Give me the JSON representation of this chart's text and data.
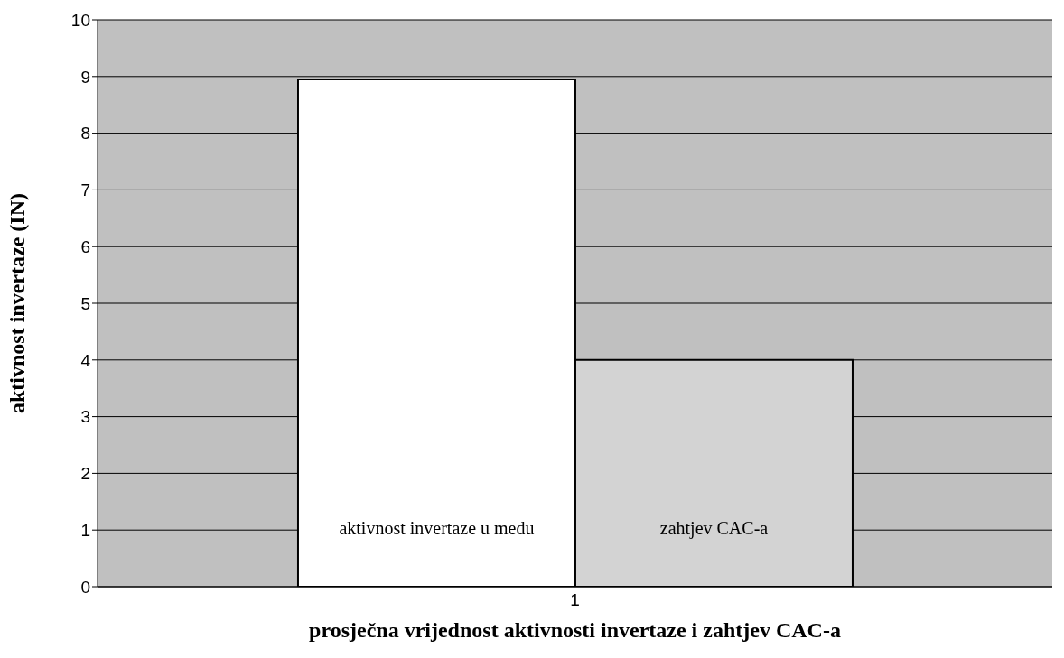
{
  "chart_data": {
    "type": "bar",
    "xlabel": "prosječna vrijednost aktivnosti invertaze i zahtjev CAC-a",
    "ylabel": "aktivnost invertaze (IN)",
    "categories": [
      "1"
    ],
    "series": [
      {
        "name": "aktivnost invertaze u medu",
        "color": "#ffffff",
        "values": [
          8.95
        ]
      },
      {
        "name": "zahtjev CAC-a",
        "color": "#d3d3d3",
        "values": [
          4
        ]
      }
    ],
    "ylim": [
      0,
      10
    ],
    "yticks": [
      0,
      1,
      2,
      3,
      4,
      5,
      6,
      7,
      8,
      9,
      10
    ],
    "grid": "y",
    "legend": false
  }
}
